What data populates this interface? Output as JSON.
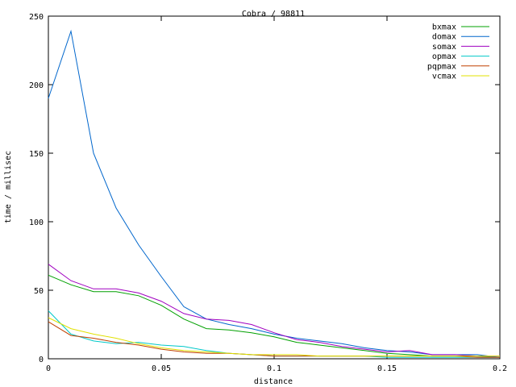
{
  "chart_data": {
    "type": "line",
    "title": "Cobra / 98811",
    "xlabel": "distance",
    "ylabel": "time / millisec",
    "xlim": [
      0,
      0.2
    ],
    "ylim": [
      0,
      250
    ],
    "xticks": [
      0,
      0.05,
      0.1,
      0.15,
      0.2
    ],
    "xtick_labels": [
      "0",
      "0.05",
      "0.1",
      "0.15",
      "0.2"
    ],
    "yticks": [
      0,
      50,
      100,
      150,
      200,
      250
    ],
    "ytick_labels": [
      "0",
      "50",
      "100",
      "150",
      "200",
      "250"
    ],
    "grid": false,
    "legend_position": "top-right",
    "x": [
      0,
      0.01,
      0.02,
      0.03,
      0.04,
      0.05,
      0.06,
      0.07,
      0.08,
      0.09,
      0.1,
      0.11,
      0.12,
      0.13,
      0.14,
      0.15,
      0.16,
      0.17,
      0.18,
      0.19,
      0.2
    ],
    "series": [
      {
        "name": "bxmax",
        "color": "#00a000",
        "values": [
          61,
          54,
          49,
          49,
          46,
          39,
          29,
          22,
          21,
          19,
          16,
          12,
          10,
          8,
          6,
          4,
          3,
          2,
          2,
          2,
          1
        ]
      },
      {
        "name": "domax",
        "color": "#0066cc",
        "values": [
          190,
          239,
          150,
          110,
          83,
          60,
          38,
          29,
          25,
          22,
          18,
          15,
          13,
          11,
          8,
          6,
          5,
          3,
          3,
          3,
          1
        ]
      },
      {
        "name": "somax",
        "color": "#a000c0",
        "values": [
          69,
          57,
          51,
          51,
          48,
          42,
          33,
          29,
          28,
          25,
          19,
          14,
          12,
          9,
          7,
          5,
          6,
          3,
          3,
          2,
          2
        ]
      },
      {
        "name": "opmax",
        "color": "#00c8c8",
        "values": [
          35,
          18,
          13,
          11,
          12,
          10,
          9,
          6,
          4,
          3,
          2,
          2,
          2,
          2,
          2,
          1,
          1,
          1,
          1,
          1,
          1
        ]
      },
      {
        "name": "pqpmax",
        "color": "#c04000",
        "values": [
          27,
          17,
          15,
          12,
          10,
          7,
          5,
          4,
          4,
          3,
          2,
          2,
          2,
          2,
          2,
          2,
          2,
          2,
          2,
          1,
          1
        ]
      },
      {
        "name": "vcmax",
        "color": "#e0e000",
        "values": [
          30,
          22,
          18,
          15,
          11,
          8,
          6,
          5,
          4,
          3,
          3,
          3,
          2,
          2,
          2,
          2,
          2,
          2,
          2,
          2,
          2
        ]
      }
    ]
  }
}
